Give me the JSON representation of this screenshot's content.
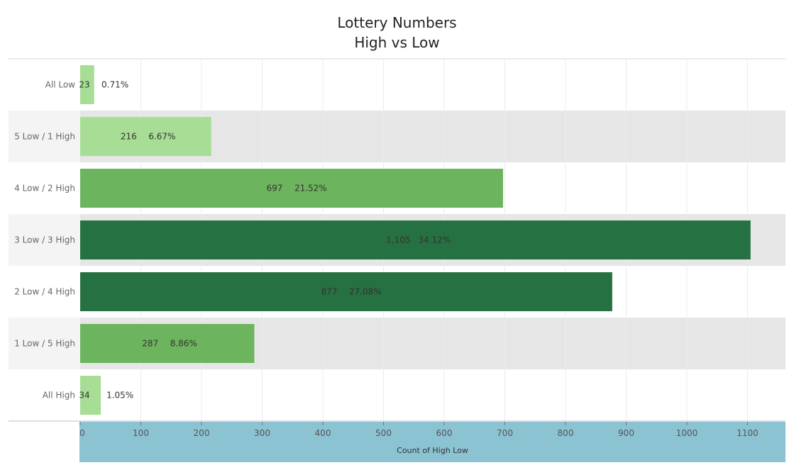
{
  "chart_data": {
    "type": "bar",
    "orientation": "horizontal",
    "title": "Lottery Numbers",
    "subtitle": "High vs Low",
    "xlabel": "Count of High Low",
    "ylabel": "",
    "xlim": [
      0,
      1150
    ],
    "ticks": [
      0,
      100,
      200,
      300,
      400,
      500,
      600,
      700,
      800,
      900,
      1000,
      1100
    ],
    "categories": [
      "All Low",
      "5 Low / 1 High",
      "4 Low / 2 High",
      "3 Low / 3 High",
      "2 Low / 4 High",
      "1 Low / 5 High",
      "All High"
    ],
    "values": [
      23,
      216,
      697,
      1105,
      877,
      287,
      34
    ],
    "value_labels": [
      "23",
      "216",
      "697",
      "1,105",
      "877",
      "287",
      "34"
    ],
    "percent_labels": [
      "0.71%",
      "6.67%",
      "21.52%",
      "34.12%",
      "27.08%",
      "8.86%",
      "1.05%"
    ],
    "colors": [
      "#a7dd94",
      "#a7dd94",
      "#6cb45e",
      "#267141",
      "#267141",
      "#6cb45e",
      "#a7dd94"
    ],
    "grid": true,
    "axis_band_color": "#8bc3d2"
  }
}
